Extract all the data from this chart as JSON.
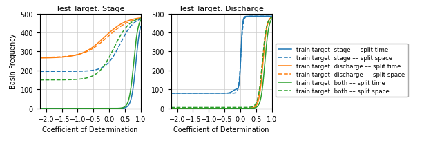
{
  "title_left": "Test Target: Stage",
  "title_right": "Test Target: Discharge",
  "xlabel": "Coefficient of Determination",
  "ylabel": "Basin Frequency",
  "xlim": [
    -2.2,
    1.0
  ],
  "ylim": [
    0,
    500
  ],
  "yticks": [
    0,
    100,
    200,
    300,
    400,
    500
  ],
  "xticks": [
    -2.0,
    -1.5,
    -1.0,
    -0.5,
    0.0,
    0.5,
    1.0
  ],
  "n_total": 486,
  "colors": {
    "blue": "#1f77b4",
    "orange": "#ff7f0e",
    "green": "#2ca02c"
  },
  "legend_entries": [
    {
      "label": "train target: stage –– split time",
      "color": "#1f77b4",
      "linestyle": "solid"
    },
    {
      "label": "train target: stage –– split space",
      "color": "#1f77b4",
      "linestyle": "dashed"
    },
    {
      "label": "train target: discharge –– split time",
      "color": "#ff7f0e",
      "linestyle": "solid"
    },
    {
      "label": "train target: discharge –– split space",
      "color": "#ff7f0e",
      "linestyle": "dashed"
    },
    {
      "label": "train target: both –– split time",
      "color": "#2ca02c",
      "linestyle": "solid"
    },
    {
      "label": "train target: both –– split space",
      "color": "#2ca02c",
      "linestyle": "dashed"
    }
  ]
}
